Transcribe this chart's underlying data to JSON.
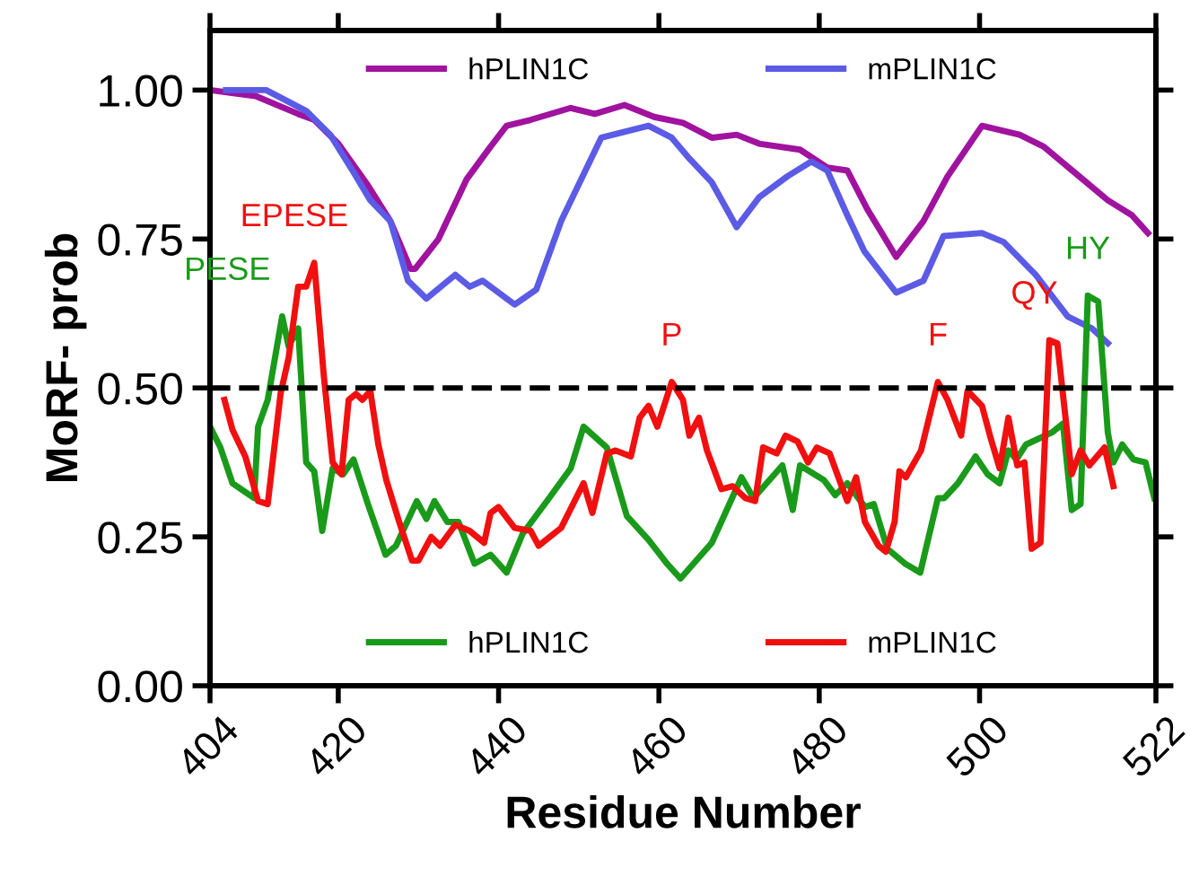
{
  "chart_data": {
    "type": "line",
    "xlabel": "Residue Number",
    "ylabel": "MoRF- prob",
    "xlim": [
      404,
      522
    ],
    "xticks": [
      404,
      420,
      440,
      460,
      480,
      500,
      522
    ],
    "ylim": [
      0,
      1.1
    ],
    "yticks": [
      {
        "value": 0,
        "label": "0.00"
      },
      {
        "value": 0.25,
        "label": "0.25"
      },
      {
        "value": 0.5,
        "label": "0.50"
      },
      {
        "value": 0.75,
        "label": "0.75"
      },
      {
        "value": 1,
        "label": "1.00"
      }
    ],
    "grid": false,
    "legend": "top",
    "line_style": "solid",
    "marker": "none",
    "ref_lines": [
      {
        "axis": "y",
        "value": 0.5,
        "color": "#000000",
        "line_style": "dashed"
      }
    ],
    "series": [
      {
        "name": "hPLIN1C",
        "color": "#a0139f",
        "x": [
          404,
          409.7,
          415,
          417,
          420,
          423.7,
          426.5,
          429,
          429.6,
          432.5,
          436,
          439,
          441,
          444,
          449,
          452,
          455.7,
          459.4,
          463,
          466.6,
          469.7,
          472.5,
          477.6,
          481,
          483.5,
          486,
          489.6,
          493,
          496,
          500.3,
          505,
          508,
          512,
          516,
          519,
          521
        ],
        "values": [
          1.0,
          0.99,
          0.96,
          0.95,
          0.91,
          0.84,
          0.78,
          0.7,
          0.7,
          0.75,
          0.85,
          0.905,
          0.94,
          0.95,
          0.97,
          0.96,
          0.975,
          0.955,
          0.945,
          0.92,
          0.925,
          0.91,
          0.9,
          0.87,
          0.865,
          0.8,
          0.72,
          0.78,
          0.855,
          0.94,
          0.925,
          0.905,
          0.86,
          0.815,
          0.79,
          0.76
        ]
      },
      {
        "name": "mPLIN1C",
        "color": "#5b5be6",
        "x": [
          406,
          411,
          416,
          419,
          422,
          424,
          426.5,
          428.7,
          431,
          434.6,
          436.4,
          438,
          442,
          444.7,
          447.8,
          452.8,
          458.7,
          461.6,
          463.8,
          466.6,
          469.7,
          472.5,
          476,
          479,
          481,
          483.5,
          485.6,
          489.6,
          493,
          495.5,
          500.3,
          503,
          507,
          511,
          514,
          516
        ],
        "values": [
          1.0,
          1.0,
          0.965,
          0.925,
          0.86,
          0.815,
          0.78,
          0.68,
          0.65,
          0.69,
          0.67,
          0.68,
          0.64,
          0.665,
          0.78,
          0.92,
          0.94,
          0.92,
          0.885,
          0.845,
          0.77,
          0.82,
          0.855,
          0.88,
          0.865,
          0.79,
          0.73,
          0.66,
          0.68,
          0.755,
          0.76,
          0.745,
          0.69,
          0.62,
          0.6,
          0.575
        ]
      },
      {
        "name": "hPLIN1C",
        "color": "#1a9a1a",
        "x": [
          404,
          405.3,
          406.8,
          409.5,
          410,
          411.2,
          413,
          413.8,
          415,
          416,
          417,
          418,
          419.3,
          420.6,
          421.9,
          423.7,
          425.9,
          427.2,
          429.8,
          431,
          432,
          433.6,
          435,
          437,
          439,
          441,
          443,
          446.3,
          449,
          450.6,
          453.5,
          456,
          458.7,
          461,
          462.7,
          466.6,
          470.3,
          471.8,
          475.4,
          476.7,
          477.6,
          480.6,
          482,
          483.5,
          485.7,
          486.8,
          488.5,
          490.7,
          492.6,
          494.8,
          495.6,
          497.3,
          499.5,
          501,
          502.5,
          503.6,
          504.6,
          505.8,
          509,
          510.4,
          511.5,
          512.6,
          513.5,
          514.8,
          516,
          516.7,
          517.8,
          519.2,
          520.7,
          521.8
        ],
        "values": [
          0.435,
          0.4,
          0.34,
          0.315,
          0.435,
          0.48,
          0.62,
          0.57,
          0.6,
          0.375,
          0.36,
          0.26,
          0.365,
          0.355,
          0.38,
          0.305,
          0.22,
          0.235,
          0.31,
          0.28,
          0.31,
          0.275,
          0.275,
          0.205,
          0.22,
          0.19,
          0.255,
          0.315,
          0.365,
          0.435,
          0.4,
          0.285,
          0.245,
          0.205,
          0.18,
          0.24,
          0.35,
          0.315,
          0.37,
          0.295,
          0.37,
          0.345,
          0.32,
          0.34,
          0.3,
          0.305,
          0.23,
          0.205,
          0.19,
          0.315,
          0.315,
          0.34,
          0.385,
          0.355,
          0.34,
          0.395,
          0.38,
          0.405,
          0.425,
          0.44,
          0.295,
          0.305,
          0.655,
          0.645,
          0.425,
          0.375,
          0.405,
          0.38,
          0.375,
          0.315
        ]
      },
      {
        "name": "mPLIN1C",
        "color": "#f01010",
        "x": [
          405.8,
          406.8,
          408.4,
          410,
          411.2,
          412.8,
          413.8,
          415,
          416,
          417,
          418.2,
          419.3,
          420.4,
          421.3,
          422.2,
          423,
          424,
          425,
          426,
          427.6,
          429.2,
          430,
          431.6,
          432.7,
          434.6,
          436.4,
          438.2,
          439,
          440,
          442,
          444,
          445,
          447.8,
          450.6,
          451.7,
          453.5,
          454.6,
          456.5,
          457.6,
          458.7,
          459.8,
          461.6,
          463,
          463.8,
          465,
          466,
          467.8,
          469.2,
          470.8,
          472,
          473,
          474.7,
          475.8,
          477.3,
          478.6,
          479.7,
          481.3,
          482.8,
          483.5,
          484.6,
          485.7,
          487.4,
          488.3,
          489.4,
          490,
          490.8,
          492.7,
          494.8,
          496,
          497.7,
          498.5,
          500.3,
          501.4,
          502.5,
          503.6,
          504.7,
          505.6,
          506.5,
          507.6,
          508.7,
          509.7,
          511.5,
          512.6,
          513.7,
          515.6,
          516.7
        ],
        "values": [
          0.48,
          0.43,
          0.385,
          0.31,
          0.305,
          0.49,
          0.55,
          0.67,
          0.67,
          0.71,
          0.52,
          0.375,
          0.355,
          0.48,
          0.49,
          0.48,
          0.495,
          0.405,
          0.345,
          0.275,
          0.21,
          0.21,
          0.25,
          0.235,
          0.27,
          0.26,
          0.24,
          0.29,
          0.3,
          0.265,
          0.26,
          0.235,
          0.265,
          0.34,
          0.29,
          0.39,
          0.395,
          0.385,
          0.45,
          0.47,
          0.435,
          0.51,
          0.48,
          0.42,
          0.45,
          0.395,
          0.33,
          0.335,
          0.315,
          0.31,
          0.4,
          0.39,
          0.42,
          0.41,
          0.375,
          0.4,
          0.39,
          0.335,
          0.31,
          0.35,
          0.275,
          0.235,
          0.225,
          0.275,
          0.36,
          0.35,
          0.395,
          0.51,
          0.48,
          0.42,
          0.495,
          0.47,
          0.415,
          0.365,
          0.45,
          0.37,
          0.375,
          0.23,
          0.24,
          0.58,
          0.575,
          0.355,
          0.395,
          0.37,
          0.4,
          0.335
        ]
      }
    ],
    "annotations": [
      {
        "text": "PESE",
        "x": 413,
        "y": 0.62
      },
      {
        "text": "EPESE",
        "x": 417,
        "y": 0.71
      },
      {
        "text": "P",
        "x": 461.6,
        "y": 0.51
      },
      {
        "text": "F",
        "x": 494.8,
        "y": 0.51
      },
      {
        "text": "QY",
        "x": 508.7,
        "y": 0.58
      },
      {
        "text": "HY",
        "x": 513.5,
        "y": 0.655
      }
    ]
  }
}
